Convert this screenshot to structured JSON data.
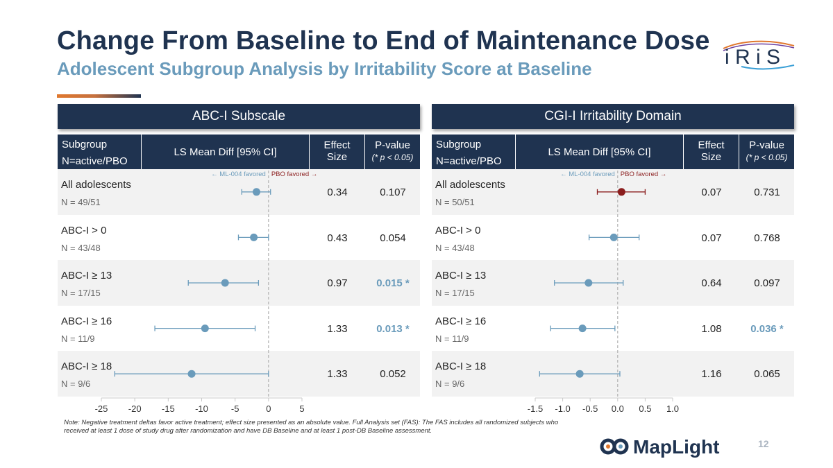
{
  "header": {
    "title": "Change From Baseline to End of Maintenance Dose",
    "subtitle": "Adolescent Subgroup Analysis by Irritability Score at Baseline",
    "logo_text": "iRiS"
  },
  "columns": {
    "subgroup_l1": "Subgroup",
    "subgroup_l2": "N=active/PBO",
    "lsmean": "LS Mean Diff [95% CI]",
    "effect_l1": "Effect",
    "effect_l2": "Size",
    "pvalue_l1": "P-value",
    "pvalue_l2": "(* p < 0.05)"
  },
  "favor": {
    "left": "← ML-004 favored",
    "right": "PBO favored →"
  },
  "colors": {
    "navy": "#1f3350",
    "steel": "#6a9bbb",
    "point": "#6a9bbb",
    "point_red": "#8b1d1d",
    "row_shade": "#f2f2f2"
  },
  "chart_data": [
    {
      "type": "forest",
      "title": "ABC-I Subscale",
      "xlim": [
        -25,
        5
      ],
      "ticks": [
        "-25",
        "-20",
        "-15",
        "-10",
        "-5",
        "0",
        "5"
      ],
      "rows": [
        {
          "label": "All adolescents",
          "n": "N = 49/51",
          "est": -1.8,
          "lo": -4.0,
          "hi": 0.3,
          "effect": "0.34",
          "p": "0.107",
          "sig": false
        },
        {
          "label": "ABC-I > 0",
          "n": "N = 43/48",
          "est": -2.2,
          "lo": -4.5,
          "hi": 0.0,
          "effect": "0.43",
          "p": "0.054",
          "sig": false
        },
        {
          "label": "ABC-I ≥ 13",
          "n": "N = 17/15",
          "est": -6.5,
          "lo": -12.0,
          "hi": -1.5,
          "effect": "0.97",
          "p": "0.015 *",
          "sig": true
        },
        {
          "label": "ABC-I ≥ 16",
          "n": "N = 11/9",
          "est": -9.5,
          "lo": -17.0,
          "hi": -2.0,
          "effect": "1.33",
          "p": "0.013 *",
          "sig": true
        },
        {
          "label": "ABC-I ≥ 18",
          "n": "N = 9/6",
          "est": -11.5,
          "lo": -23.0,
          "hi": 0.0,
          "effect": "1.33",
          "p": "0.052",
          "sig": false
        }
      ]
    },
    {
      "type": "forest",
      "title": "CGI-I Irritability Domain",
      "xlim": [
        -1.5,
        1.0
      ],
      "ticks": [
        "-1.5",
        "-1.0",
        "-0.5",
        "0.0",
        "0.5",
        "1.0"
      ],
      "rows": [
        {
          "label": "All adolescents",
          "n": "N = 50/51",
          "est": 0.07,
          "lo": -0.37,
          "hi": 0.5,
          "effect": "0.07",
          "p": "0.731",
          "sig": false,
          "highlight": true
        },
        {
          "label": "ABC-I > 0",
          "n": "N = 43/48",
          "est": -0.07,
          "lo": -0.52,
          "hi": 0.39,
          "effect": "0.07",
          "p": "0.768",
          "sig": false
        },
        {
          "label": "ABC-I ≥ 13",
          "n": "N = 17/15",
          "est": -0.53,
          "lo": -1.15,
          "hi": 0.1,
          "effect": "0.64",
          "p": "0.097",
          "sig": false
        },
        {
          "label": "ABC-I ≥ 16",
          "n": "N = 11/9",
          "est": -0.64,
          "lo": -1.22,
          "hi": -0.05,
          "effect": "1.08",
          "p": "0.036 *",
          "sig": true
        },
        {
          "label": "ABC-I ≥ 18",
          "n": "N = 9/6",
          "est": -0.69,
          "lo": -1.42,
          "hi": 0.04,
          "effect": "1.16",
          "p": "0.065",
          "sig": false
        }
      ]
    }
  ],
  "footer": {
    "note": "Note: Negative treatment deltas favor active treatment; effect size presented as an absolute value. Full Analysis set (FAS): The FAS includes all randomized subjects who received at least 1 dose of study drug after randomization and have DB Baseline and at least 1 post-DB Baseline assessment.",
    "brand": "MapLight",
    "page_number": "12"
  }
}
